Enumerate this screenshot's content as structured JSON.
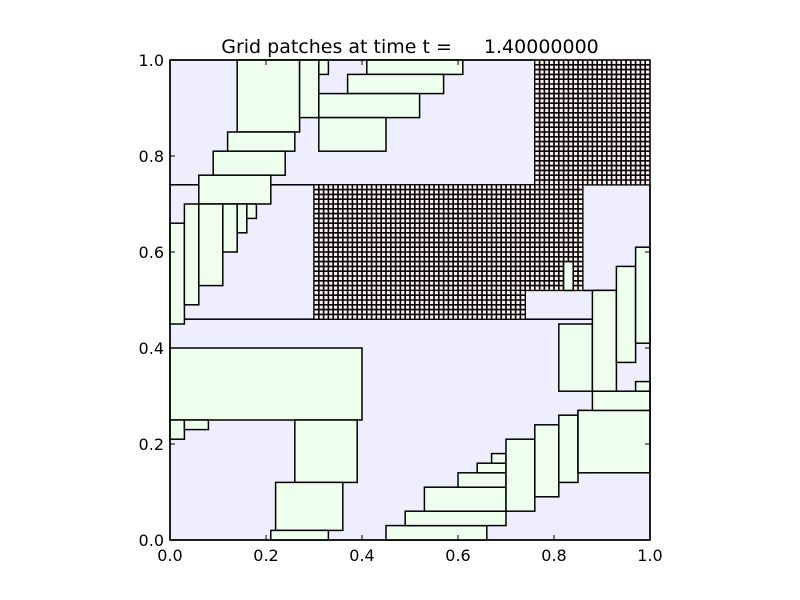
{
  "chart_data": {
    "type": "patch-map",
    "title_prefix": "Grid patches at time t =",
    "title_value": "1.40000000",
    "xlim": [
      0,
      1
    ],
    "ylim": [
      0,
      1
    ],
    "x_ticks": [
      0.0,
      0.2,
      0.4,
      0.6,
      0.8,
      1.0
    ],
    "y_ticks": [
      0.0,
      0.2,
      0.4,
      0.6,
      0.8,
      1.0
    ],
    "x_tick_labels": [
      "0.0",
      "0.2",
      "0.4",
      "0.6",
      "0.8",
      "1.0"
    ],
    "y_tick_labels": [
      "0.0",
      "0.2",
      "0.4",
      "0.6",
      "0.8",
      "1.0"
    ],
    "colors": {
      "level1_fill": "#eeeeff",
      "level2_fill": "#eeffee",
      "refined_fill": "#ffeeee",
      "edge": "#000000"
    },
    "level1_patches": [
      {
        "x0": 0.0,
        "x1": 0.76,
        "y0": 0.74,
        "y1": 1.0
      },
      {
        "x0": 0.0,
        "x1": 0.3,
        "y0": 0.46,
        "y1": 0.74
      },
      {
        "x0": 0.0,
        "x1": 1.0,
        "y0": 0.0,
        "y1": 0.46
      },
      {
        "x0": 0.74,
        "x1": 1.0,
        "y0": 0.46,
        "y1": 0.52
      },
      {
        "x0": 0.86,
        "x1": 1.0,
        "y0": 0.52,
        "y1": 0.74
      }
    ],
    "refined_patches": [
      {
        "x0": 0.76,
        "x1": 1.0,
        "y0": 0.74,
        "y1": 1.0,
        "dx": 0.01,
        "dy": 0.01
      },
      {
        "x0": 0.3,
        "x1": 0.86,
        "y0": 0.52,
        "y1": 0.74,
        "dx": 0.01,
        "dy": 0.01
      },
      {
        "x0": 0.3,
        "x1": 0.74,
        "y0": 0.46,
        "y1": 0.52,
        "dx": 0.01,
        "dy": 0.01
      }
    ],
    "level2_patches": [
      {
        "x0": 0.14,
        "x1": 0.27,
        "y0": 0.85,
        "y1": 1.0
      },
      {
        "x0": 0.27,
        "x1": 0.31,
        "y0": 0.88,
        "y1": 1.0
      },
      {
        "x0": 0.31,
        "x1": 0.33,
        "y0": 0.97,
        "y1": 1.0
      },
      {
        "x0": 0.41,
        "x1": 0.61,
        "y0": 0.97,
        "y1": 1.0
      },
      {
        "x0": 0.37,
        "x1": 0.57,
        "y0": 0.93,
        "y1": 0.97
      },
      {
        "x0": 0.31,
        "x1": 0.52,
        "y0": 0.88,
        "y1": 0.93
      },
      {
        "x0": 0.31,
        "x1": 0.45,
        "y0": 0.81,
        "y1": 0.88
      },
      {
        "x0": 0.12,
        "x1": 0.26,
        "y0": 0.81,
        "y1": 0.85
      },
      {
        "x0": 0.09,
        "x1": 0.24,
        "y0": 0.76,
        "y1": 0.81
      },
      {
        "x0": 0.06,
        "x1": 0.21,
        "y0": 0.7,
        "y1": 0.76
      },
      {
        "x0": 0.0,
        "x1": 0.03,
        "y0": 0.45,
        "y1": 0.66
      },
      {
        "x0": 0.03,
        "x1": 0.06,
        "y0": 0.49,
        "y1": 0.7
      },
      {
        "x0": 0.06,
        "x1": 0.11,
        "y0": 0.53,
        "y1": 0.7
      },
      {
        "x0": 0.11,
        "x1": 0.14,
        "y0": 0.6,
        "y1": 0.7
      },
      {
        "x0": 0.14,
        "x1": 0.16,
        "y0": 0.64,
        "y1": 0.7
      },
      {
        "x0": 0.16,
        "x1": 0.18,
        "y0": 0.67,
        "y1": 0.7
      },
      {
        "x0": 0.82,
        "x1": 0.84,
        "y0": 0.52,
        "y1": 0.58
      },
      {
        "x0": 0.0,
        "x1": 0.4,
        "y0": 0.25,
        "y1": 0.4
      },
      {
        "x0": 0.0,
        "x1": 0.03,
        "y0": 0.21,
        "y1": 0.25
      },
      {
        "x0": 0.03,
        "x1": 0.08,
        "y0": 0.23,
        "y1": 0.25
      },
      {
        "x0": 0.26,
        "x1": 0.39,
        "y0": 0.12,
        "y1": 0.25
      },
      {
        "x0": 0.22,
        "x1": 0.36,
        "y0": 0.02,
        "y1": 0.12
      },
      {
        "x0": 0.21,
        "x1": 0.33,
        "y0": 0.0,
        "y1": 0.02
      },
      {
        "x0": 0.45,
        "x1": 0.66,
        "y0": 0.0,
        "y1": 0.03
      },
      {
        "x0": 0.49,
        "x1": 0.7,
        "y0": 0.03,
        "y1": 0.06
      },
      {
        "x0": 0.53,
        "x1": 0.7,
        "y0": 0.06,
        "y1": 0.11
      },
      {
        "x0": 0.6,
        "x1": 0.7,
        "y0": 0.11,
        "y1": 0.14
      },
      {
        "x0": 0.64,
        "x1": 0.7,
        "y0": 0.14,
        "y1": 0.16
      },
      {
        "x0": 0.67,
        "x1": 0.7,
        "y0": 0.16,
        "y1": 0.18
      },
      {
        "x0": 0.7,
        "x1": 0.76,
        "y0": 0.06,
        "y1": 0.21
      },
      {
        "x0": 0.76,
        "x1": 0.81,
        "y0": 0.09,
        "y1": 0.24
      },
      {
        "x0": 0.81,
        "x1": 0.85,
        "y0": 0.12,
        "y1": 0.26
      },
      {
        "x0": 0.85,
        "x1": 0.87,
        "y0": 0.14,
        "y1": 0.27
      },
      {
        "x0": 0.85,
        "x1": 1.0,
        "y0": 0.14,
        "y1": 0.27
      },
      {
        "x0": 0.88,
        "x1": 1.0,
        "y0": 0.27,
        "y1": 0.31
      },
      {
        "x0": 0.97,
        "x1": 1.0,
        "y0": 0.31,
        "y1": 0.33
      },
      {
        "x0": 0.81,
        "x1": 0.88,
        "y0": 0.31,
        "y1": 0.45
      },
      {
        "x0": 0.88,
        "x1": 0.93,
        "y0": 0.31,
        "y1": 0.52
      },
      {
        "x0": 0.93,
        "x1": 0.97,
        "y0": 0.37,
        "y1": 0.57
      },
      {
        "x0": 0.97,
        "x1": 1.0,
        "y0": 0.41,
        "y1": 0.61
      }
    ]
  }
}
